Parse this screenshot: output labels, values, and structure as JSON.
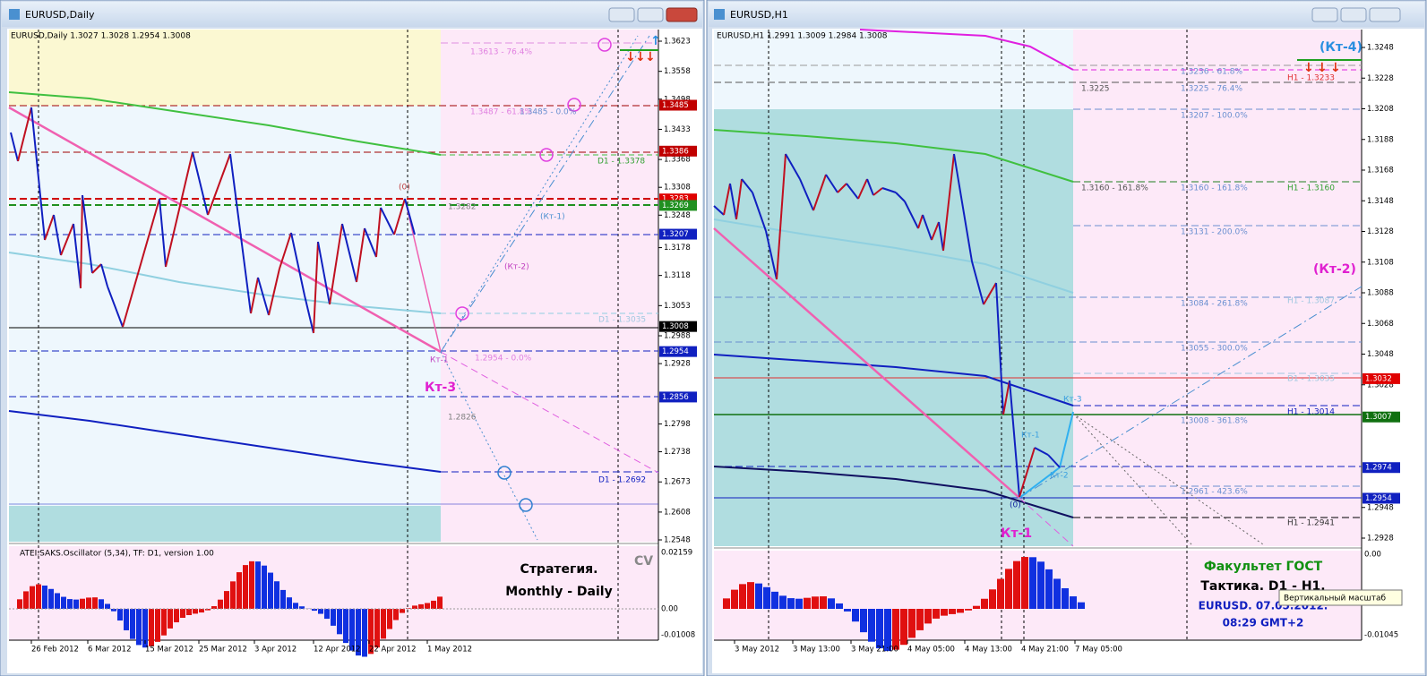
{
  "left_window": {
    "title": "EURUSD,Daily",
    "header": "EURUSD,Daily  1.3027 1.3028 1.2954 1.3008",
    "price_axis": [
      "1.3623",
      "1.3558",
      "1.3498",
      "1.3433",
      "1.3368",
      "1.3308",
      "1.3248",
      "1.3178",
      "1.3118",
      "1.3053",
      "1.2988",
      "1.2928",
      "1.2798",
      "1.2738",
      "1.2673",
      "1.2608",
      "1.2548"
    ],
    "price_marks": [
      {
        "label": "1.3485",
        "color": "#c00000"
      },
      {
        "label": "1.3386",
        "color": "#c00000"
      },
      {
        "label": "1.3283",
        "color": "#e00000"
      },
      {
        "label": "1.3269",
        "color": "#209020"
      },
      {
        "label": "1.3207",
        "color": "#1020c0"
      },
      {
        "label": "1.3008",
        "color": "#000000"
      },
      {
        "label": "1.2954",
        "color": "#1020c0"
      },
      {
        "label": "1.2856",
        "color": "#1020c0"
      }
    ],
    "time_axis": [
      "26 Feb 2012",
      "6 Mar 2012",
      "15 Mar 2012",
      "25 Mar 2012",
      "3 Apr 2012",
      "12 Apr 2012",
      "22 Apr 2012",
      "1 May 2012"
    ],
    "annotations": [
      "1.3613 - 76.4%",
      "1.3487 - 61.8%",
      "1.3485 - 0.0%",
      "D1 - 1.3378",
      "(0)",
      "1.3282",
      "(Кт-1)",
      "(Кт-2)",
      "D1 - 1.3035",
      "Кт-1",
      "1.2954 - 0.0%",
      "Кт-3",
      "1.2826",
      "D1 - 1.2692"
    ],
    "indicator": {
      "name": "ATEI.SAKS.Oscillator (5,34), TF: D1,  version 1.00",
      "axis": [
        "0.02159",
        "0.00",
        "-0.01008"
      ],
      "caption": "CV",
      "strategy": [
        "Стратегия.",
        "Monthly - Daily"
      ]
    }
  },
  "right_window": {
    "title": "EURUSD,H1",
    "header": "EURUSD,H1  1.2991 1.3009 1.2984 1.3008",
    "price_axis": [
      "1.3248",
      "1.3228",
      "1.3208",
      "1.3188",
      "1.3168",
      "1.3148",
      "1.3128",
      "1.3108",
      "1.3088",
      "1.3068",
      "1.3048",
      "1.3028",
      "1.2948",
      "1.2928"
    ],
    "price_marks": [
      {
        "label": "1.3032",
        "color": "#e00000"
      },
      {
        "label": "1.3007",
        "color": "#107010"
      },
      {
        "label": "1.2974",
        "color": "#1020c0"
      },
      {
        "label": "1.2954",
        "color": "#1020c0"
      }
    ],
    "time_axis": [
      "3 May 2012",
      "3 May 13:00",
      "3 May 21:00",
      "4 May 05:00",
      "4 May 13:00",
      "4 May 21:00",
      "7 May 05:00"
    ],
    "annotations": [
      "1.3225",
      "1.3236 - 61.8%",
      "1.3225 - 76.4%",
      "H1 - 1.3233",
      "(Кт-4)",
      "1.3207 - 100.0%",
      "1.3160 - 161.8%",
      "1.3160 - 161.8%",
      "H1 - 1.3160",
      "1.3131 - 200.0%",
      "(Кт-2)",
      "H1 - 1.3087",
      "1.3084 - 261.8%",
      "1.3055 - 300.0%",
      "D1 - 1.3035",
      "Кт-3",
      "H1 - 1.3014",
      "1.3008 - 361.8%",
      "Кт-1",
      "Кт-2",
      "1.2961 - 423.6%",
      "(0)",
      "H1 - 1.2941",
      "Кт-1"
    ],
    "indicator": {
      "axis": [
        "0.00",
        "-0.01045"
      ],
      "lines": [
        "Факультет ГОСТ",
        "Тактика. D1 - H1.",
        "EURUSD. 07.05.2012.",
        "08:29  GMT+2"
      ],
      "tooltip": "Вертикальный масштаб"
    }
  }
}
